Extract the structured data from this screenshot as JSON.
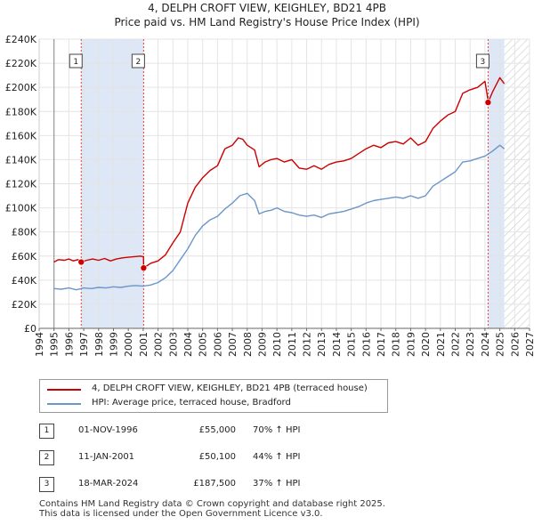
{
  "title": "4, DELPH CROFT VIEW, KEIGHLEY, BD21 4PB",
  "subtitle": "Price paid vs. HM Land Registry's House Price Index (HPI)",
  "colors": {
    "property": "#cc0000",
    "hpi": "#6c96c8",
    "band": "#dde7f5",
    "marker": "#cc0000"
  },
  "chart_data": {
    "type": "line",
    "title": "4, DELPH CROFT VIEW, KEIGHLEY, BD21 4PB",
    "subtitle": "Price paid vs. HM Land Registry's House Price Index (HPI)",
    "xlim": [
      1994,
      2027
    ],
    "ylim": [
      0,
      240000
    ],
    "y_ticks": [
      {
        "value": 0,
        "label": "£0"
      },
      {
        "value": 20000,
        "label": "£20K"
      },
      {
        "value": 40000,
        "label": "£40K"
      },
      {
        "value": 60000,
        "label": "£60K"
      },
      {
        "value": 80000,
        "label": "£80K"
      },
      {
        "value": 100000,
        "label": "£100K"
      },
      {
        "value": 120000,
        "label": "£120K"
      },
      {
        "value": 140000,
        "label": "£140K"
      },
      {
        "value": 160000,
        "label": "£160K"
      },
      {
        "value": 180000,
        "label": "£180K"
      },
      {
        "value": 200000,
        "label": "£200K"
      },
      {
        "value": 220000,
        "label": "£220K"
      },
      {
        "value": 240000,
        "label": "£240K"
      }
    ],
    "x_ticks": [
      "1994",
      "1995",
      "1996",
      "1997",
      "1998",
      "1999",
      "2000",
      "2001",
      "2002",
      "2003",
      "2004",
      "2005",
      "2006",
      "2007",
      "2008",
      "2009",
      "2010",
      "2011",
      "2012",
      "2013",
      "2014",
      "2015",
      "2016",
      "2017",
      "2018",
      "2019",
      "2020",
      "2021",
      "2022",
      "2023",
      "2024",
      "2025",
      "2026",
      "2027"
    ],
    "grid": true,
    "data_start": 1995.0,
    "data_end": 2025.3,
    "highlight_bands": [
      [
        1996.83,
        2001.03
      ],
      [
        2024.21,
        2025.3
      ]
    ],
    "future_hatch_from": 2025.3,
    "series": [
      {
        "name": "4, DELPH CROFT VIEW, KEIGHLEY, BD21 4PB (terraced house)",
        "color": "#cc0000",
        "points": [
          [
            1995.0,
            55000
          ],
          [
            1995.3,
            57000
          ],
          [
            1995.7,
            56500
          ],
          [
            1996.0,
            57500
          ],
          [
            1996.3,
            56000
          ],
          [
            1996.6,
            57000
          ],
          [
            1996.83,
            55000
          ],
          [
            1997.2,
            56500
          ],
          [
            1997.6,
            57500
          ],
          [
            1998.0,
            56500
          ],
          [
            1998.4,
            58000
          ],
          [
            1998.8,
            56000
          ],
          [
            1999.2,
            57500
          ],
          [
            1999.6,
            58500
          ],
          [
            2000.0,
            59000
          ],
          [
            2000.4,
            59500
          ],
          [
            2000.8,
            60000
          ],
          [
            2001.02,
            59500
          ],
          [
            2001.03,
            50100
          ],
          [
            2001.5,
            54000
          ],
          [
            2002.0,
            56000
          ],
          [
            2002.5,
            61000
          ],
          [
            2003.0,
            71000
          ],
          [
            2003.5,
            80000
          ],
          [
            2004.0,
            104000
          ],
          [
            2004.5,
            117000
          ],
          [
            2005.0,
            125000
          ],
          [
            2005.5,
            131000
          ],
          [
            2006.0,
            135000
          ],
          [
            2006.5,
            149000
          ],
          [
            2007.0,
            152000
          ],
          [
            2007.4,
            158000
          ],
          [
            2007.7,
            157000
          ],
          [
            2008.0,
            152000
          ],
          [
            2008.5,
            148000
          ],
          [
            2008.8,
            134000
          ],
          [
            2009.2,
            138000
          ],
          [
            2009.6,
            140000
          ],
          [
            2010.0,
            141000
          ],
          [
            2010.5,
            138000
          ],
          [
            2011.0,
            140000
          ],
          [
            2011.5,
            133000
          ],
          [
            2012.0,
            132000
          ],
          [
            2012.5,
            135000
          ],
          [
            2013.0,
            132000
          ],
          [
            2013.5,
            136000
          ],
          [
            2014.0,
            138000
          ],
          [
            2014.5,
            139000
          ],
          [
            2015.0,
            141000
          ],
          [
            2015.5,
            145000
          ],
          [
            2016.0,
            149000
          ],
          [
            2016.5,
            152000
          ],
          [
            2017.0,
            150000
          ],
          [
            2017.5,
            154000
          ],
          [
            2018.0,
            155000
          ],
          [
            2018.5,
            153000
          ],
          [
            2019.0,
            158000
          ],
          [
            2019.5,
            152000
          ],
          [
            2020.0,
            155000
          ],
          [
            2020.5,
            166000
          ],
          [
            2021.0,
            172000
          ],
          [
            2021.5,
            177000
          ],
          [
            2022.0,
            180000
          ],
          [
            2022.5,
            195000
          ],
          [
            2023.0,
            198000
          ],
          [
            2023.5,
            200000
          ],
          [
            2024.0,
            205000
          ],
          [
            2024.2,
            190000
          ],
          [
            2024.21,
            187500
          ],
          [
            2024.5,
            196000
          ],
          [
            2025.0,
            208000
          ],
          [
            2025.3,
            203000
          ]
        ]
      },
      {
        "name": "HPI: Average price, terraced house, Bradford",
        "color": "#6c96c8",
        "points": [
          [
            1995.0,
            33000
          ],
          [
            1995.5,
            32500
          ],
          [
            1996.0,
            33500
          ],
          [
            1996.5,
            32000
          ],
          [
            1997.0,
            33500
          ],
          [
            1997.5,
            33000
          ],
          [
            1998.0,
            34000
          ],
          [
            1998.5,
            33500
          ],
          [
            1999.0,
            34500
          ],
          [
            1999.5,
            34000
          ],
          [
            2000.0,
            35000
          ],
          [
            2000.5,
            35500
          ],
          [
            2001.0,
            35000
          ],
          [
            2001.5,
            36000
          ],
          [
            2002.0,
            38000
          ],
          [
            2002.5,
            42000
          ],
          [
            2003.0,
            48000
          ],
          [
            2003.5,
            57000
          ],
          [
            2004.0,
            66000
          ],
          [
            2004.5,
            77000
          ],
          [
            2005.0,
            85000
          ],
          [
            2005.5,
            90000
          ],
          [
            2006.0,
            93000
          ],
          [
            2006.5,
            99000
          ],
          [
            2007.0,
            104000
          ],
          [
            2007.5,
            110000
          ],
          [
            2008.0,
            112000
          ],
          [
            2008.5,
            106000
          ],
          [
            2008.8,
            95000
          ],
          [
            2009.2,
            97000
          ],
          [
            2009.6,
            98000
          ],
          [
            2010.0,
            100000
          ],
          [
            2010.5,
            97000
          ],
          [
            2011.0,
            96000
          ],
          [
            2011.5,
            94000
          ],
          [
            2012.0,
            93000
          ],
          [
            2012.5,
            94000
          ],
          [
            2013.0,
            92000
          ],
          [
            2013.5,
            95000
          ],
          [
            2014.0,
            96000
          ],
          [
            2014.5,
            97000
          ],
          [
            2015.0,
            99000
          ],
          [
            2015.5,
            101000
          ],
          [
            2016.0,
            104000
          ],
          [
            2016.5,
            106000
          ],
          [
            2017.0,
            107000
          ],
          [
            2017.5,
            108000
          ],
          [
            2018.0,
            109000
          ],
          [
            2018.5,
            108000
          ],
          [
            2019.0,
            110000
          ],
          [
            2019.5,
            108000
          ],
          [
            2020.0,
            110000
          ],
          [
            2020.5,
            118000
          ],
          [
            2021.0,
            122000
          ],
          [
            2021.5,
            126000
          ],
          [
            2022.0,
            130000
          ],
          [
            2022.5,
            138000
          ],
          [
            2023.0,
            139000
          ],
          [
            2023.5,
            141000
          ],
          [
            2024.0,
            143000
          ],
          [
            2024.5,
            147000
          ],
          [
            2025.0,
            152000
          ],
          [
            2025.3,
            149000
          ]
        ]
      }
    ],
    "sale_markers": [
      {
        "label": "1",
        "x": 1996.83,
        "y": 55000
      },
      {
        "label": "2",
        "x": 2001.03,
        "y": 50100
      },
      {
        "label": "3",
        "x": 2024.21,
        "y": 187500
      }
    ]
  },
  "legend": {
    "property_label": "4, DELPH CROFT VIEW, KEIGHLEY, BD21 4PB (terraced house)",
    "hpi_label": "HPI: Average price, terraced house, Bradford"
  },
  "transactions": [
    {
      "num": "1",
      "date": "01-NOV-1996",
      "price": "£55,000",
      "hpi": "70% ↑ HPI"
    },
    {
      "num": "2",
      "date": "11-JAN-2001",
      "price": "£50,100",
      "hpi": "44% ↑ HPI"
    },
    {
      "num": "3",
      "date": "18-MAR-2024",
      "price": "£187,500",
      "hpi": "37% ↑ HPI"
    }
  ],
  "footer": {
    "line1": "Contains HM Land Registry data © Crown copyright and database right 2025.",
    "line2": "This data is licensed under the Open Government Licence v3.0."
  }
}
